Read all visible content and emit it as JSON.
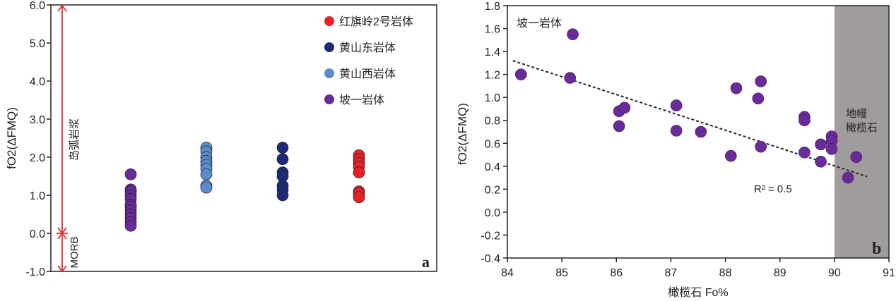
{
  "chart_data": [
    {
      "type": "scatter",
      "panel_label": "a",
      "ylabel": "fO2(ΔFMQ)",
      "ylim": [
        -1.0,
        6.0
      ],
      "yticks": [
        "-1.0",
        "0.0",
        "1.0",
        "2.0",
        "3.0",
        "4.0",
        "5.0",
        "6.0"
      ],
      "annotations": {
        "arc": "岛弧岩浆",
        "morb": "MORB"
      },
      "legend_position": "top-right",
      "series": [
        {
          "name": "红旗岭2号岩体",
          "color": "#e8202a",
          "column": 4,
          "values": [
            2.05,
            1.95,
            1.85,
            1.75,
            1.6,
            1.1,
            1.05,
            0.95
          ]
        },
        {
          "name": "黄山东岩体",
          "color": "#1e2a78",
          "column": 3,
          "values": [
            2.25,
            1.95,
            1.6,
            1.5,
            1.25,
            1.15,
            1.0
          ]
        },
        {
          "name": "黄山西岩体",
          "color": "#5b8ccc",
          "column": 2,
          "values": [
            2.25,
            2.15,
            2.0,
            1.9,
            1.8,
            1.7,
            1.55,
            1.25,
            1.2
          ]
        },
        {
          "name": "坡一岩体",
          "color": "#6a2a9a",
          "column": 1,
          "values": [
            1.55,
            1.15,
            1.1,
            1.0,
            0.9,
            0.75,
            0.7,
            0.6,
            0.5,
            0.4,
            0.3,
            0.2
          ]
        }
      ]
    },
    {
      "type": "scatter",
      "panel_label": "b",
      "title": "坡一岩体",
      "xlabel": "橄榄石 Fo%",
      "ylabel": "fO2(ΔFMQ)",
      "xlim": [
        84,
        91
      ],
      "ylim": [
        -0.4,
        1.8
      ],
      "xticks": [
        "84",
        "85",
        "86",
        "87",
        "88",
        "89",
        "90",
        "91"
      ],
      "yticks": [
        "-0.4",
        "-0.2",
        "0.0",
        "0.2",
        "0.4",
        "0.6",
        "0.8",
        "1.0",
        "1.2",
        "1.4",
        "1.6",
        "1.8"
      ],
      "shaded_region": {
        "x": [
          90,
          91
        ],
        "label": [
          "地幔",
          "橄榄石"
        ],
        "color": "#a09c9e"
      },
      "trendline": {
        "x": [
          84.1,
          90.6
        ],
        "y": [
          1.32,
          0.31
        ],
        "label": "R² = 0.5"
      },
      "color": "#6a2a9a",
      "points": [
        [
          84.25,
          1.2
        ],
        [
          85.2,
          1.55
        ],
        [
          85.15,
          1.17
        ],
        [
          86.05,
          0.88
        ],
        [
          86.15,
          0.91
        ],
        [
          86.05,
          0.75
        ],
        [
          87.1,
          0.93
        ],
        [
          87.1,
          0.71
        ],
        [
          87.55,
          0.7
        ],
        [
          88.1,
          0.49
        ],
        [
          88.2,
          1.08
        ],
        [
          88.6,
          0.99
        ],
        [
          88.65,
          1.14
        ],
        [
          88.65,
          0.57
        ],
        [
          89.45,
          0.83
        ],
        [
          89.45,
          0.8
        ],
        [
          89.45,
          0.52
        ],
        [
          89.75,
          0.59
        ],
        [
          89.75,
          0.44
        ],
        [
          89.95,
          0.66
        ],
        [
          89.95,
          0.62
        ],
        [
          89.95,
          0.55
        ],
        [
          90.25,
          0.3
        ],
        [
          90.4,
          0.48
        ]
      ]
    }
  ]
}
